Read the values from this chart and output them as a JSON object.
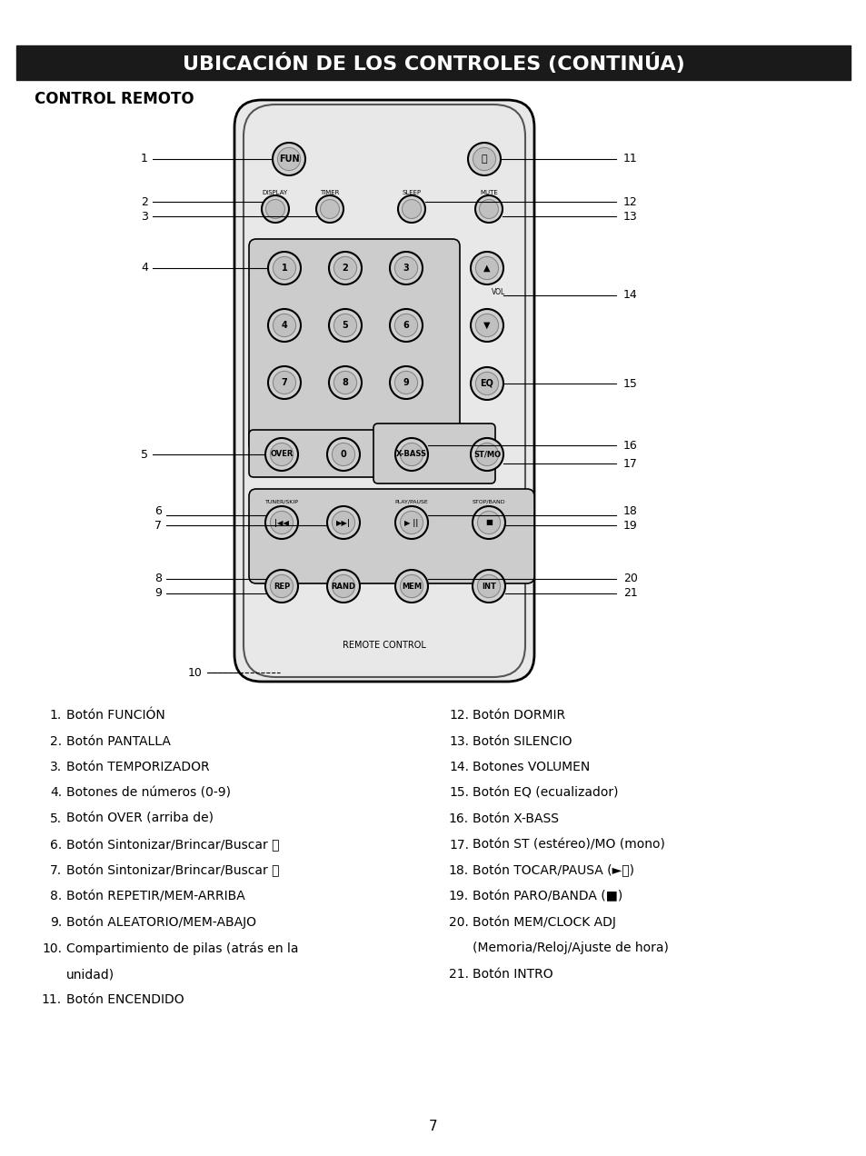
{
  "title": "UBICACIÓN DE LOS CONTROLES (CONTINÚA)",
  "subtitle": "CONTROL REMOTO",
  "bg_color": "#ffffff",
  "title_bg": "#1a1a1a",
  "title_color": "#ffffff",
  "title_fontsize": 16,
  "subtitle_fontsize": 12,
  "body_fontsize": 11,
  "left_items": [
    "1.   Botón FUNCIÓN",
    "2.   Botón PANTALLA",
    "3.   Botón TEMPORIZADOR",
    "4.   Botones de números (0-9)",
    "5.   Botón OVER (arriba de)",
    "6.   Botón Sintonizar/Brincar/Buscar ⏮",
    "7.   Botón Sintonizar/Brincar/Buscar ⏭",
    "8.   Botón REPETIR/MEM-ARRIBA",
    "9.   Botón ALEATORIO/MEM-ABAJO",
    "10. Compartimiento de pilas (atrás en la\n      unidad)",
    "11. Botón ENCENDIDO"
  ],
  "right_items": [
    "12. Botón DORMIR",
    "13. Botón SILENCIO",
    "14. Botones VOLUMEN",
    "15. Botón EQ (ecualizador)",
    "16. Botón X-BASS",
    "17. Botón ST (estéreo)/MO (mono)",
    "18. Botón TOCAR/PAUSA (►⏸)",
    "19. Botón PARO/BANDA (■)",
    "20. Botón MEM/CLOCK ADJ\n      (Memoria/Reloj/Ajuste de hora)",
    "21. Botón INTRO"
  ],
  "page_number": "7"
}
